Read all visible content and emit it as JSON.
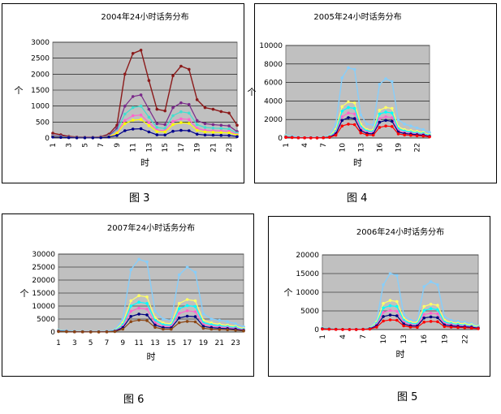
{
  "chart_data": [
    {
      "type": "line",
      "title": "2004年24小时话务分布",
      "xlabel": "时",
      "ylabel": "个",
      "caption": "图 3",
      "ylim": [
        0,
        3000
      ],
      "yticks": [
        "0",
        "500",
        "1000",
        "1500",
        "2000",
        "2500",
        "3000"
      ],
      "xticks": [
        "1",
        "3",
        "5",
        "7",
        "9",
        "11",
        "13",
        "15",
        "17",
        "19",
        "21",
        "23"
      ],
      "grid": true,
      "x": [
        1,
        2,
        3,
        4,
        5,
        6,
        7,
        8,
        9,
        10,
        11,
        12,
        13,
        14,
        15,
        16,
        17,
        18,
        19,
        20,
        21,
        22,
        23,
        24
      ],
      "series": [
        {
          "color": "#8b1a1a",
          "values": [
            150,
            100,
            50,
            30,
            20,
            20,
            40,
            120,
            400,
            2000,
            2650,
            2750,
            1800,
            900,
            850,
            1950,
            2250,
            2150,
            1200,
            950,
            900,
            830,
            780,
            400
          ]
        },
        {
          "color": "#7a2a8a",
          "values": [
            80,
            60,
            30,
            20,
            15,
            15,
            30,
            80,
            300,
            1000,
            1300,
            1350,
            900,
            450,
            420,
            950,
            1100,
            1050,
            550,
            450,
            420,
            400,
            380,
            200
          ]
        },
        {
          "color": "#40e0d0",
          "values": [
            60,
            40,
            20,
            15,
            10,
            10,
            25,
            60,
            220,
            750,
            950,
            1000,
            650,
            330,
            300,
            700,
            820,
            780,
            420,
            330,
            310,
            300,
            280,
            150
          ]
        },
        {
          "color": "#ff66cc",
          "values": [
            50,
            30,
            15,
            10,
            8,
            8,
            20,
            50,
            180,
            550,
            700,
            720,
            480,
            250,
            230,
            520,
            600,
            580,
            300,
            240,
            230,
            220,
            210,
            110
          ]
        },
        {
          "color": "#ffff00",
          "values": [
            40,
            25,
            12,
            8,
            6,
            6,
            15,
            40,
            150,
            450,
            560,
            580,
            390,
            200,
            190,
            420,
            480,
            460,
            240,
            190,
            180,
            170,
            160,
            90
          ]
        },
        {
          "color": "#00008b",
          "values": [
            30,
            20,
            10,
            6,
            5,
            5,
            10,
            30,
            80,
            230,
            280,
            290,
            190,
            100,
            95,
            210,
            240,
            230,
            120,
            95,
            90,
            85,
            80,
            45
          ]
        }
      ]
    },
    {
      "type": "line",
      "title": "2005年24小时话务分布",
      "xlabel": "时",
      "ylabel": "个",
      "caption": "图 4",
      "ylim": [
        0,
        10000
      ],
      "yticks": [
        "0",
        "2000",
        "4000",
        "6000",
        "8000",
        "10000"
      ],
      "xticks": [
        "1",
        "4",
        "7",
        "10",
        "13",
        "16",
        "19",
        "22"
      ],
      "grid": true,
      "x": [
        1,
        2,
        3,
        4,
        5,
        6,
        7,
        8,
        9,
        10,
        11,
        12,
        13,
        14,
        15,
        16,
        17,
        18,
        19,
        20,
        21,
        22,
        23,
        24
      ],
      "series": [
        {
          "color": "#87cefa",
          "values": [
            300,
            200,
            100,
            60,
            50,
            50,
            100,
            300,
            1500,
            6500,
            7600,
            7400,
            2500,
            1500,
            1400,
            5800,
            6400,
            6100,
            2000,
            1500,
            1300,
            1100,
            900,
            600
          ]
        },
        {
          "color": "#ffff66",
          "values": [
            200,
            120,
            60,
            40,
            30,
            30,
            70,
            200,
            900,
            3400,
            3900,
            3800,
            1500,
            900,
            850,
            3000,
            3300,
            3200,
            1200,
            900,
            800,
            700,
            600,
            350
          ]
        },
        {
          "color": "#00ffff",
          "values": [
            150,
            100,
            50,
            30,
            25,
            25,
            55,
            150,
            700,
            2900,
            3300,
            3200,
            1200,
            750,
            700,
            2600,
            2800,
            2700,
            1000,
            750,
            650,
            550,
            480,
            280
          ]
        },
        {
          "color": "#ff66cc",
          "values": [
            120,
            80,
            40,
            25,
            20,
            20,
            45,
            120,
            550,
            2300,
            2700,
            2600,
            1000,
            600,
            560,
            2100,
            2300,
            2200,
            800,
            600,
            520,
            450,
            380,
            220
          ]
        },
        {
          "color": "#000080",
          "values": [
            100,
            60,
            30,
            20,
            15,
            15,
            35,
            100,
            450,
            1900,
            2200,
            2100,
            800,
            480,
            450,
            1700,
            1900,
            1800,
            650,
            480,
            420,
            360,
            300,
            180
          ]
        },
        {
          "color": "#ff0000",
          "values": [
            70,
            40,
            20,
            15,
            10,
            10,
            25,
            70,
            300,
            1300,
            1500,
            1450,
            550,
            330,
            310,
            1150,
            1300,
            1250,
            450,
            330,
            290,
            250,
            210,
            120
          ]
        }
      ]
    },
    {
      "type": "line",
      "title": "2007年24小时话务分布",
      "xlabel": "时",
      "ylabel": "个",
      "caption": "图 6",
      "ylim": [
        0,
        30000
      ],
      "yticks": [
        "0",
        "5000",
        "10000",
        "15000",
        "20000",
        "25000",
        "30000"
      ],
      "xticks": [
        "1",
        "3",
        "5",
        "7",
        "9",
        "11",
        "13",
        "15",
        "17",
        "19",
        "21",
        "23"
      ],
      "grid": true,
      "x": [
        1,
        2,
        3,
        4,
        5,
        6,
        7,
        8,
        9,
        10,
        11,
        12,
        13,
        14,
        15,
        16,
        17,
        18,
        19,
        20,
        21,
        22,
        23,
        24
      ],
      "series": [
        {
          "color": "#87cefa",
          "values": [
            800,
            500,
            300,
            200,
            150,
            150,
            300,
            900,
            5000,
            24000,
            28000,
            27000,
            8000,
            5000,
            4500,
            22000,
            25000,
            23000,
            7000,
            5000,
            4500,
            4000,
            3200,
            2000
          ]
        },
        {
          "color": "#ffff66",
          "values": [
            600,
            350,
            200,
            150,
            100,
            100,
            200,
            600,
            3500,
            12000,
            14000,
            13500,
            5500,
            3500,
            3200,
            11000,
            12500,
            12000,
            4500,
            3500,
            3000,
            2600,
            2200,
            1300
          ]
        },
        {
          "color": "#00ffff",
          "values": [
            500,
            300,
            150,
            120,
            80,
            80,
            160,
            500,
            2800,
            10000,
            11500,
            11000,
            4500,
            2800,
            2600,
            9000,
            10200,
            9800,
            3600,
            2800,
            2400,
            2100,
            1800,
            1000
          ]
        },
        {
          "color": "#ff66cc",
          "values": [
            400,
            250,
            120,
            100,
            70,
            70,
            130,
            400,
            2200,
            8000,
            9200,
            8800,
            3600,
            2200,
            2100,
            7200,
            8200,
            7800,
            2900,
            2200,
            1900,
            1700,
            1400,
            800
          ]
        },
        {
          "color": "#000080",
          "values": [
            300,
            200,
            100,
            80,
            50,
            50,
            100,
            300,
            1700,
            6000,
            6900,
            6600,
            2700,
            1700,
            1600,
            5400,
            6100,
            5900,
            2200,
            1700,
            1450,
            1300,
            1050,
            600
          ]
        },
        {
          "color": "#8b4513",
          "values": [
            200,
            130,
            70,
            50,
            35,
            35,
            70,
            200,
            1100,
            4000,
            4600,
            4400,
            1800,
            1100,
            1050,
            3600,
            4100,
            3900,
            1450,
            1100,
            960,
            860,
            700,
            400
          ]
        }
      ]
    },
    {
      "type": "line",
      "title": "2006年24小时话务分布",
      "xlabel": "时",
      "ylabel": "个",
      "caption": "图 5",
      "ylim": [
        0,
        20000
      ],
      "yticks": [
        "0",
        "5000",
        "10000",
        "15000",
        "20000"
      ],
      "xticks": [
        "1",
        "4",
        "7",
        "10",
        "13",
        "16",
        "19",
        "22"
      ],
      "grid": true,
      "x": [
        1,
        2,
        3,
        4,
        5,
        6,
        7,
        8,
        9,
        10,
        11,
        12,
        13,
        14,
        15,
        16,
        17,
        18,
        19,
        20,
        21,
        22,
        23,
        24
      ],
      "series": [
        {
          "color": "#87cefa",
          "values": [
            500,
            300,
            150,
            100,
            80,
            80,
            150,
            500,
            2500,
            12000,
            15000,
            14500,
            4000,
            2500,
            2300,
            11500,
            12800,
            12000,
            3500,
            2500,
            2200,
            2000,
            1600,
            1000
          ]
        },
        {
          "color": "#ffff66",
          "values": [
            400,
            250,
            120,
            80,
            60,
            60,
            120,
            400,
            2000,
            7000,
            7800,
            7500,
            3000,
            2000,
            1900,
            6200,
            6800,
            6500,
            2500,
            1900,
            1700,
            1500,
            1300,
            800
          ]
        },
        {
          "color": "#00ffff",
          "values": [
            300,
            200,
            100,
            60,
            50,
            50,
            100,
            300,
            1600,
            5800,
            6400,
            6200,
            2500,
            1600,
            1500,
            5100,
            5600,
            5300,
            2000,
            1600,
            1400,
            1200,
            1000,
            600
          ]
        },
        {
          "color": "#ff66cc",
          "values": [
            250,
            150,
            80,
            50,
            40,
            40,
            80,
            250,
            1300,
            4600,
            5100,
            4900,
            2000,
            1300,
            1200,
            4000,
            4400,
            4200,
            1600,
            1300,
            1100,
            950,
            800,
            500
          ]
        },
        {
          "color": "#000080",
          "values": [
            200,
            120,
            60,
            40,
            30,
            30,
            60,
            200,
            1000,
            3500,
            3900,
            3700,
            1500,
            1000,
            950,
            3100,
            3400,
            3200,
            1250,
            1000,
            850,
            750,
            620,
            380
          ]
        },
        {
          "color": "#ff0000",
          "values": [
            120,
            80,
            40,
            25,
            20,
            20,
            40,
            120,
            650,
            2300,
            2600,
            2500,
            1000,
            650,
            600,
            2000,
            2200,
            2100,
            800,
            650,
            560,
            490,
            400,
            250
          ]
        }
      ]
    }
  ]
}
